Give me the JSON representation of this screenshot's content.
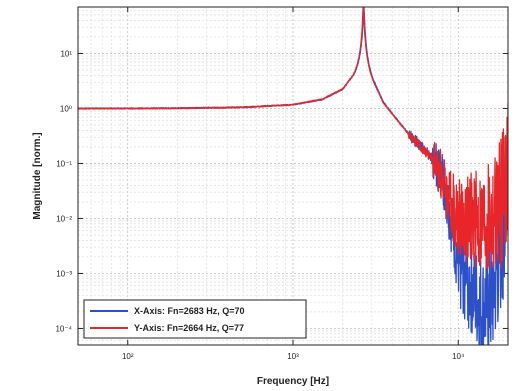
{
  "chart_data": {
    "type": "line",
    "xlabel": "Frequency [Hz]",
    "ylabel": "Magnitude [norm.]",
    "x_scale": "log",
    "y_scale": "log",
    "xlim": [
      50,
      20000
    ],
    "ylim": [
      5e-05,
      70
    ],
    "grid": true,
    "legend_placement": "bottom-left",
    "x_ticks": [
      {
        "value": 100,
        "label": "10²"
      },
      {
        "value": 1000,
        "label": "10³"
      },
      {
        "value": 10000,
        "label": "10⁴"
      }
    ],
    "y_ticks": [
      {
        "value": 10,
        "label": "10¹"
      },
      {
        "value": 1,
        "label": "10⁰"
      },
      {
        "value": 0.1,
        "label": "10⁻¹"
      },
      {
        "value": 0.01,
        "label": "10⁻²"
      },
      {
        "value": 0.001,
        "label": "10⁻³"
      },
      {
        "value": 0.0001,
        "label": "10⁻⁴"
      }
    ],
    "series": [
      {
        "name": "X-Axis: Fn=2683 Hz, Q=70",
        "color": "#2c50c8",
        "fn": 2683,
        "q": 70,
        "x": [
          50,
          100,
          200,
          500,
          1000,
          1500,
          2000,
          2400,
          2683,
          3000,
          3500,
          4000,
          5000,
          6000,
          7000,
          8000,
          9000,
          10000,
          12000,
          14000,
          16000,
          18000,
          20000
        ],
        "y": [
          1.0,
          1.0,
          1.01,
          1.05,
          1.17,
          1.45,
          2.24,
          4.6,
          70,
          3.9,
          1.35,
          0.8,
          0.35,
          0.2,
          0.12,
          0.06,
          0.01,
          0.0015,
          0.0005,
          0.0002,
          0.0003,
          0.002,
          0.05
        ]
      },
      {
        "name": "Y-Axis: Fn=2664 Hz, Q=77",
        "color": "#e8262a",
        "fn": 2664,
        "q": 77,
        "x": [
          50,
          100,
          200,
          500,
          1000,
          1500,
          2000,
          2400,
          2664,
          3000,
          3500,
          4000,
          5000,
          6000,
          7000,
          8000,
          9000,
          10000,
          12000,
          14000,
          16000,
          18000,
          20000
        ],
        "y": [
          1.0,
          1.0,
          1.01,
          1.05,
          1.17,
          1.47,
          2.28,
          4.7,
          77,
          3.6,
          1.3,
          0.78,
          0.34,
          0.2,
          0.12,
          0.06,
          0.02,
          0.01,
          0.01,
          0.008,
          0.01,
          0.02,
          0.1
        ]
      }
    ]
  }
}
